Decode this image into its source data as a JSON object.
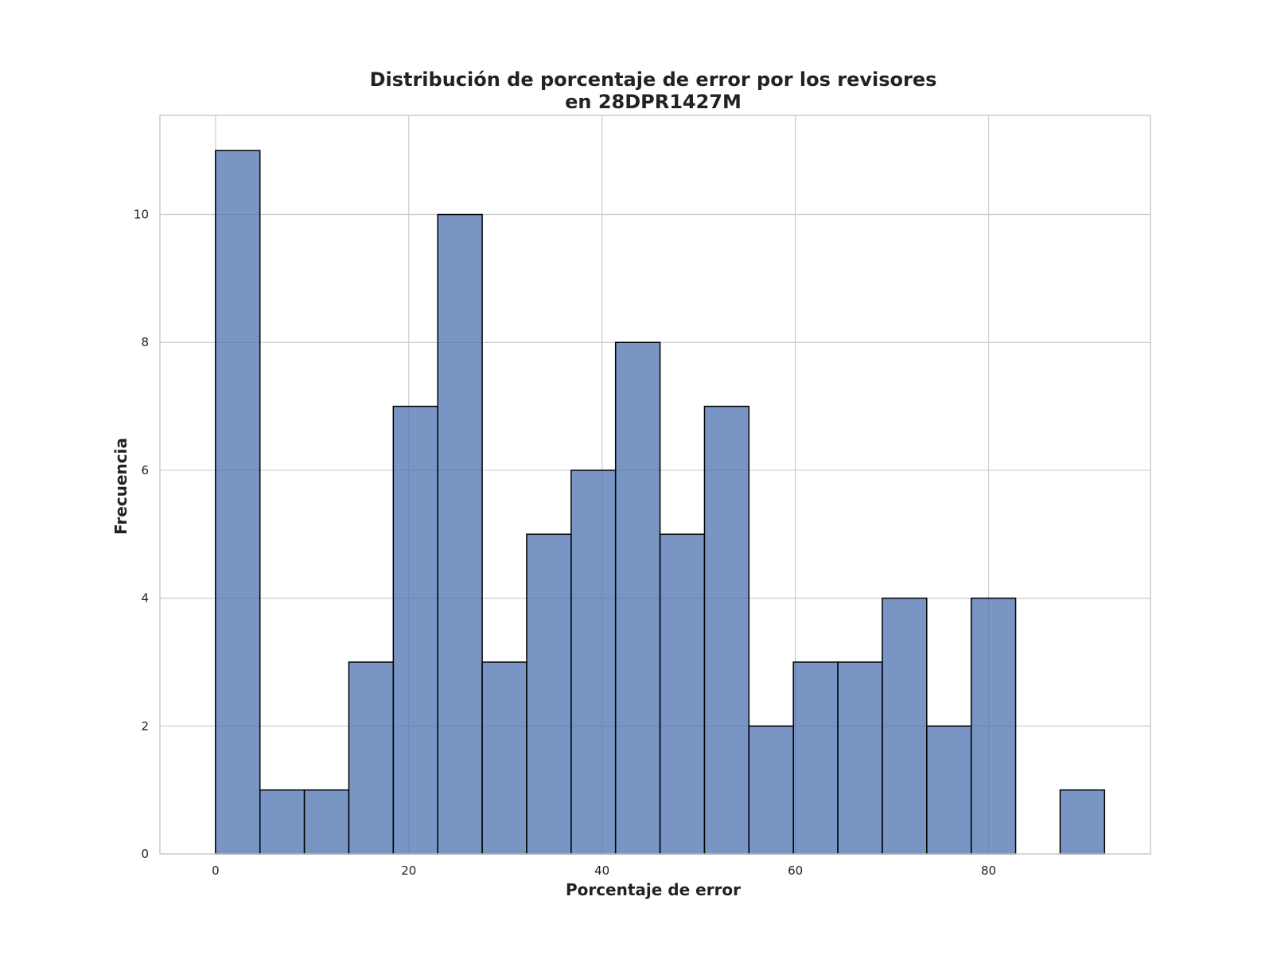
{
  "chart_data": {
    "type": "bar",
    "title_lines": [
      "Distribución de porcentaje de error por los revisores",
      "en 28DPR1427M"
    ],
    "xlabel": "Porcentaje de error",
    "ylabel": "Frecuencia",
    "bin_width": 4.6,
    "bin_start": 0,
    "values": [
      11,
      1,
      1,
      3,
      7,
      10,
      3,
      5,
      6,
      8,
      5,
      7,
      2,
      3,
      3,
      4,
      2,
      4,
      0,
      1
    ],
    "xlim": [
      -5.75,
      96.75
    ],
    "ylim": [
      0,
      11.55
    ],
    "x_ticks": [
      0,
      20,
      40,
      60,
      80
    ],
    "y_ticks": [
      0,
      2,
      4,
      6,
      8,
      10
    ],
    "grid": true,
    "colors": {
      "bar_fill": "#4c72b0",
      "bar_edge": "#000000",
      "grid": "#cccccc",
      "spine": "#cccccc"
    }
  }
}
